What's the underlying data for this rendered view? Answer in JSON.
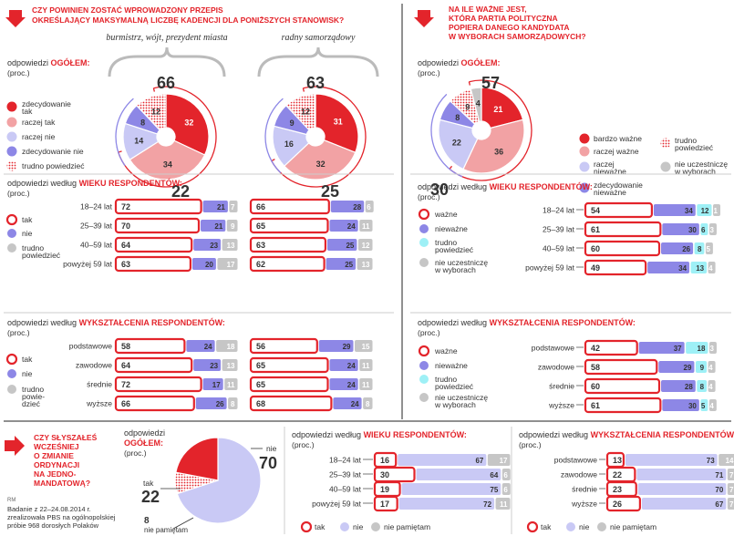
{
  "colors": {
    "red": "#e3242b",
    "pink": "#f2a2a4",
    "lavender": "#c9c9f5",
    "purple": "#8d87e6",
    "gray": "#c6c6c6",
    "cyan": "#9ef0f6",
    "red_dots": "#f09090",
    "text": "#333333",
    "white": "#ffffff"
  },
  "left_panel": {
    "question_lines": [
      "CZY POWINIEN ZOSTAĆ WPROWADZONY PRZEPIS",
      "OKREŚLAJĄCY MAKSYMALNĄ LICZBĘ KADENCJI DLA PONIŻSZYCH STANOWISK?"
    ],
    "overall_label": "odpowiedzi",
    "overall_label_bold": "OGÓŁEM:",
    "unit": "(proc.)",
    "legend": [
      {
        "label": "zdecydowanie tak",
        "lines": [
          "zdecydowanie",
          "tak"
        ],
        "icon": "red-filled-circle"
      },
      {
        "label": "raczej tak",
        "lines": [
          "raczej tak"
        ],
        "icon": "pink-circle"
      },
      {
        "label": "raczej nie",
        "lines": [
          "raczej nie"
        ],
        "icon": "lavender-circle"
      },
      {
        "label": "zdecydowanie nie",
        "lines": [
          "zdecydowanie nie"
        ],
        "icon": "purple-circle"
      },
      {
        "label": "trudno powiedzieć",
        "lines": [
          "trudno powiedzieć"
        ],
        "icon": "dotted-circle"
      }
    ],
    "age_title_plain": "odpowiedzi według",
    "age_title_red": "WIEKU RESPONDENTÓW:",
    "edu_title_plain": "odpowiedzi według",
    "edu_title_red": "WYKSZTAŁCENIA RESPONDENTÓW:",
    "bar_legend": [
      {
        "label": "tak",
        "lines": [
          "tak"
        ],
        "icon": "red-ring"
      },
      {
        "label": "nie",
        "lines": [
          "nie"
        ],
        "icon": "purple-dot"
      },
      {
        "label": "trudno powiedzieć",
        "lines": [
          "trudno",
          "powiedzieć"
        ],
        "icon": "gray-dot"
      }
    ],
    "bar_legend_edu": [
      {
        "label": "tak",
        "lines": [
          "tak"
        ],
        "icon": "red-ring"
      },
      {
        "label": "nie",
        "lines": [
          "nie"
        ],
        "icon": "purple-dot"
      },
      {
        "label": "trudno powiedzieć",
        "lines": [
          "trudno",
          "powie-",
          "dzieć"
        ],
        "icon": "gray-dot"
      }
    ]
  },
  "right_panel": {
    "question_lines": [
      "NA ILE WAŻNE JEST,",
      "KTÓRA PARTIA POLITYCZNA",
      "POPIERA DANEGO KANDYDATA",
      "W WYBORACH SAMORZĄDOWYCH?"
    ],
    "overall_label": "odpowiedzi",
    "overall_label_bold": "OGÓŁEM:",
    "unit": "(proc.)",
    "legend": [
      {
        "label": "bardzo ważne",
        "lines": [
          "bardzo ważne"
        ],
        "icon": "red-filled-circle"
      },
      {
        "label": "raczej ważne",
        "lines": [
          "raczej ważne"
        ],
        "icon": "pink-circle"
      },
      {
        "label": "raczej nieważne",
        "lines": [
          "raczej",
          "nieważne"
        ],
        "icon": "lavender-circle"
      },
      {
        "label": "zdecydowanie nieważne",
        "lines": [
          "zdecydowanie",
          "nieważne"
        ],
        "icon": "purple-circle"
      },
      {
        "label": "trudno powiedzieć",
        "lines": [
          "trudno",
          "powiedzieć"
        ],
        "icon": "dotted-circle"
      },
      {
        "label": "nie uczestniczę w wyborach",
        "lines": [
          "nie uczestniczę",
          "w wyborach"
        ],
        "icon": "gray-circle"
      }
    ],
    "age_title_plain": "odpowiedzi według",
    "age_title_red": "WIEKU RESPONDENTÓW:",
    "edu_title_plain": "odpowiedzi według",
    "edu_title_red": "WYKSZTAŁCENIA RESPONDENTÓW:",
    "bar_legend": [
      {
        "label": "ważne",
        "lines": [
          "ważne"
        ],
        "icon": "red-ring"
      },
      {
        "label": "nieważne",
        "lines": [
          "nieważne"
        ],
        "icon": "purple-dot"
      },
      {
        "label": "trudno powiedzieć",
        "lines": [
          "trudno",
          "powiedzieć"
        ],
        "icon": "cyan-dot"
      },
      {
        "label": "nie uczestniczę w wyborach",
        "lines": [
          "nie uczestniczę",
          "w wyborach"
        ],
        "icon": "gray-dot"
      }
    ]
  },
  "bottom_panel": {
    "question_lines": [
      "CZY SŁYSZAŁEŚ",
      "WCZEŚNIEJ",
      "O ZMIANIE",
      "ORDYNACJI",
      "NA JEDNO-",
      "MANDATOWĄ?"
    ],
    "overall_label": "odpowiedzi",
    "overall_label_bold": "OGÓŁEM:",
    "unit": "(proc.)",
    "age_title_plain": "odpowiedzi według",
    "age_title_red": "WIEKU RESPONDENTÓW:",
    "edu_title_plain": "odpowiedzi według",
    "edu_title_red": "WYKSZTAŁCENIA RESPONDENTÓW:",
    "legend": [
      {
        "label": "tak",
        "icon": "red-ring"
      },
      {
        "label": "nie",
        "icon": "lavender-dot"
      },
      {
        "label": "nie pamiętam",
        "icon": "gray-dot"
      }
    ]
  },
  "footer": {
    "tag": "RM",
    "lines": [
      "Badanie z 22–24.08.2014 r.",
      "zrealizowała PBS na ogólnopolskiej",
      "próbie 968 dorosłych Polaków"
    ]
  },
  "chart_data": [
    {
      "type": "pie",
      "id": "pie-burmistrz",
      "title": "burmistrz, wójt, prezydent miasta",
      "categories": [
        "zdecydowanie tak",
        "raczej tak",
        "raczej nie",
        "zdecydowanie nie",
        "trudno powiedzieć"
      ],
      "values": [
        32,
        34,
        14,
        8,
        12
      ],
      "total_tak": 66,
      "total_nie": 22
    },
    {
      "type": "pie",
      "id": "pie-radny",
      "title": "radny samorządowy",
      "categories": [
        "zdecydowanie tak",
        "raczej tak",
        "raczej nie",
        "zdecydowanie nie",
        "trudno powiedzieć"
      ],
      "values": [
        31,
        32,
        16,
        9,
        12
      ],
      "total_tak": 63,
      "total_nie": 25
    },
    {
      "type": "bar",
      "id": "left-age-burmistrz",
      "categories": [
        "18–24 lat",
        "25–39 lat",
        "40–59 lat",
        "powyżej 59 lat"
      ],
      "series": [
        {
          "name": "tak",
          "values": [
            72,
            70,
            64,
            63
          ]
        },
        {
          "name": "nie",
          "values": [
            21,
            21,
            23,
            20
          ]
        },
        {
          "name": "trudno powiedzieć",
          "values": [
            7,
            9,
            13,
            17
          ]
        }
      ]
    },
    {
      "type": "bar",
      "id": "left-age-radny",
      "categories": [
        "18–24 lat",
        "25–39 lat",
        "40–59 lat",
        "powyżej 59 lat"
      ],
      "series": [
        {
          "name": "tak",
          "values": [
            66,
            65,
            63,
            62
          ]
        },
        {
          "name": "nie",
          "values": [
            28,
            24,
            25,
            25
          ]
        },
        {
          "name": "trudno powiedzieć",
          "values": [
            6,
            11,
            12,
            13
          ]
        }
      ]
    },
    {
      "type": "bar",
      "id": "left-edu-burmistrz",
      "categories": [
        "podstawowe",
        "zawodowe",
        "średnie",
        "wyższe"
      ],
      "series": [
        {
          "name": "tak",
          "values": [
            58,
            64,
            72,
            66
          ]
        },
        {
          "name": "nie",
          "values": [
            24,
            23,
            17,
            26
          ]
        },
        {
          "name": "trudno powiedzieć",
          "values": [
            18,
            13,
            11,
            8
          ]
        }
      ]
    },
    {
      "type": "bar",
      "id": "left-edu-radny",
      "categories": [
        "podstawowe",
        "zawodowe",
        "średnie",
        "wyższe"
      ],
      "series": [
        {
          "name": "tak",
          "values": [
            56,
            65,
            65,
            68
          ]
        },
        {
          "name": "nie",
          "values": [
            29,
            24,
            24,
            24
          ]
        },
        {
          "name": "trudno powiedzieć",
          "values": [
            15,
            11,
            11,
            8
          ]
        }
      ]
    },
    {
      "type": "pie",
      "id": "pie-partia",
      "categories": [
        "bardzo ważne",
        "raczej ważne",
        "raczej nieważne",
        "zdecydowanie nieważne",
        "trudno powiedzieć",
        "nie uczestniczę w wyborach"
      ],
      "values": [
        21,
        36,
        22,
        8,
        9,
        4
      ],
      "total_wazne": 57,
      "total_niewazne": 30
    },
    {
      "type": "bar",
      "id": "right-age",
      "categories": [
        "18–24 lat",
        "25–39 lat",
        "40–59 lat",
        "powyżej 59 lat"
      ],
      "series": [
        {
          "name": "ważne",
          "values": [
            54,
            61,
            60,
            49
          ]
        },
        {
          "name": "nieważne",
          "values": [
            34,
            30,
            26,
            34
          ]
        },
        {
          "name": "trudno powiedzieć",
          "values": [
            12,
            6,
            8,
            13
          ]
        },
        {
          "name": "nie uczestniczę w wyborach",
          "values": [
            1,
            3,
            5,
            4
          ]
        }
      ]
    },
    {
      "type": "bar",
      "id": "right-edu",
      "categories": [
        "podstawowe",
        "zawodowe",
        "średnie",
        "wyższe"
      ],
      "series": [
        {
          "name": "ważne",
          "values": [
            42,
            58,
            60,
            61
          ]
        },
        {
          "name": "nieważne",
          "values": [
            37,
            29,
            28,
            30
          ]
        },
        {
          "name": "trudno powiedzieć",
          "values": [
            18,
            9,
            8,
            5
          ]
        },
        {
          "name": "nie uczestniczę w wyborach",
          "values": [
            3,
            4,
            4,
            4
          ]
        }
      ]
    },
    {
      "type": "pie",
      "id": "pie-ordynacja",
      "categories": [
        "tak",
        "nie",
        "nie pamiętam"
      ],
      "values": [
        22,
        70,
        8
      ]
    },
    {
      "type": "bar",
      "id": "bottom-age",
      "categories": [
        "18–24 lat",
        "25–39 lat",
        "40–59 lat",
        "powyżej 59 lat"
      ],
      "series": [
        {
          "name": "tak",
          "values": [
            16,
            30,
            19,
            17
          ]
        },
        {
          "name": "nie",
          "values": [
            67,
            64,
            75,
            72
          ]
        },
        {
          "name": "nie pamiętam",
          "values": [
            17,
            6,
            6,
            11
          ]
        }
      ]
    },
    {
      "type": "bar",
      "id": "bottom-edu",
      "categories": [
        "podstawowe",
        "zawodowe",
        "średnie",
        "wyższe"
      ],
      "series": [
        {
          "name": "tak",
          "values": [
            13,
            22,
            23,
            26
          ]
        },
        {
          "name": "nie",
          "values": [
            73,
            71,
            70,
            67
          ]
        },
        {
          "name": "nie pamiętam",
          "values": [
            14,
            7,
            7,
            7
          ]
        }
      ]
    }
  ]
}
